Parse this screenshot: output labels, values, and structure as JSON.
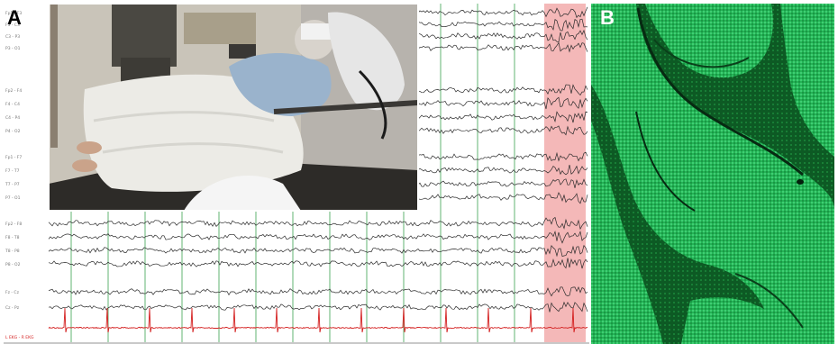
{
  "panels": {
    "a_letter": "A",
    "b_letter": "B"
  },
  "eeg": {
    "channels": [
      "Fp1 - F3",
      "F3 - C3",
      "C3 - P3",
      "P3 - O1",
      "Fp2 - F4",
      "F4 - C4",
      "C4 - P4",
      "P4 - O2",
      "Fp1 - F7",
      "F7 - T7",
      "T7 - P7",
      "P7 - O1",
      "Fp2 - F8",
      "F8 - T8",
      "T8 - P8",
      "P8 - O2",
      "Fz - Cz",
      "Cz - Pz"
    ],
    "ekg_label": "L EKG - R EKG"
  },
  "colors": {
    "trace": "#2a2a2a",
    "ekg_trace": "#d42020",
    "gridline": "#7cc08a",
    "seizure_highlight": "#f0a0a0",
    "channel_label": "#777777",
    "fluorescence": "#1fc460"
  },
  "scene": {
    "icons": [
      "video-frame-icon",
      "patient-photo-icon",
      "cerebellum-micrograph-icon"
    ]
  }
}
